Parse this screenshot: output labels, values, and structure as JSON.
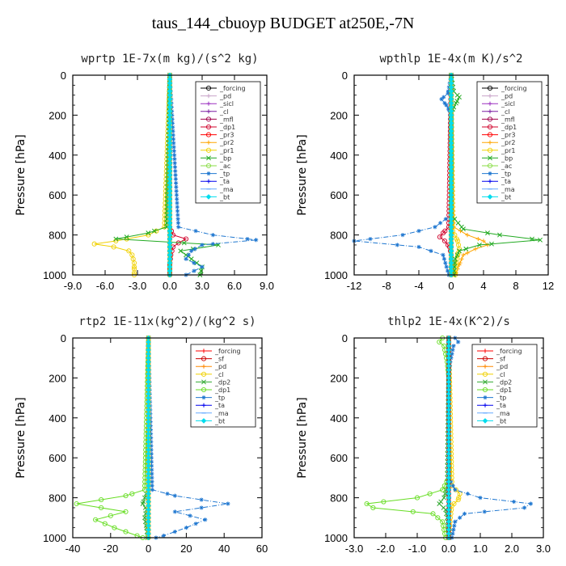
{
  "figure": {
    "title": "taus_144_cbuoyp  BUDGET at250E,-7N"
  },
  "chart_data": [
    {
      "type": "line",
      "title": "wprtp   1E-7x(m kg)/(s^2 kg)",
      "ylabel": "Pressure [hPa]",
      "xlim": [
        -9,
        9
      ],
      "ylim": [
        1000,
        0
      ],
      "y_reversed": true,
      "x_ticks": [
        "-9.0",
        "-6.0",
        "-3.0",
        "0.0",
        "3.0",
        "6.0",
        "9.0"
      ],
      "x_tick_values": [
        -9,
        -6,
        -3,
        0,
        3,
        6,
        9
      ],
      "y_ticks": [
        "0",
        "200",
        "400",
        "600",
        "800",
        "1000"
      ],
      "y_tick_values": [
        0,
        200,
        400,
        600,
        800,
        1000
      ],
      "legend_position": "top-right",
      "series": [
        {
          "name": "_forcing",
          "color": "#000000",
          "marker": "o",
          "y": [
            0,
            1000
          ],
          "x": [
            0,
            0
          ]
        },
        {
          "name": "_pd",
          "color": "#c8a2c8",
          "marker": "+",
          "y": [
            0,
            1000
          ],
          "x": [
            0,
            0
          ]
        },
        {
          "name": "_sicl",
          "color": "#9b30c0",
          "marker": "+",
          "y": [
            0,
            1000
          ],
          "x": [
            0,
            0
          ]
        },
        {
          "name": "_cl",
          "color": "#7b1fa2",
          "marker": "+",
          "y": [
            0,
            1000
          ],
          "x": [
            0,
            0
          ]
        },
        {
          "name": "_mfl",
          "color": "#a0004a",
          "marker": "o",
          "y": [
            0,
            1000
          ],
          "x": [
            0,
            0
          ]
        },
        {
          "name": "_dp1",
          "color": "#d0002a",
          "marker": "o",
          "y": [
            0,
            760,
            800,
            820,
            840,
            860,
            900,
            950,
            1000
          ],
          "x": [
            0,
            0,
            0.3,
            1.5,
            0.8,
            0.3,
            0.1,
            0,
            0
          ]
        },
        {
          "name": "_pr3",
          "color": "#ff0000",
          "marker": "o",
          "y": [
            0,
            1000
          ],
          "x": [
            0,
            0
          ]
        },
        {
          "name": "_pr2",
          "color": "#ffa500",
          "marker": "+",
          "y": [
            0,
            1000
          ],
          "x": [
            0,
            0
          ]
        },
        {
          "name": "_pr1",
          "color": "#f0d000",
          "marker": "o",
          "y": [
            0,
            760,
            800,
            830,
            845,
            860,
            880,
            900,
            940,
            970,
            1000
          ],
          "x": [
            0,
            -0.5,
            -2.0,
            -5.0,
            -7.0,
            -5.2,
            -3.8,
            -3.5,
            -3.3,
            -3.3,
            -3.3
          ]
        },
        {
          "name": "_bp",
          "color": "#22aa22",
          "marker": "x",
          "y": [
            0,
            760,
            790,
            820,
            850,
            880,
            920,
            960,
            1000
          ],
          "x": [
            0,
            -0.3,
            -2.0,
            -5.0,
            4.5,
            1.0,
            2.0,
            3.0,
            2.8
          ]
        },
        {
          "name": "_ac",
          "color": "#88dd44",
          "marker": "o",
          "y": [
            0,
            1000
          ],
          "x": [
            0,
            0
          ]
        },
        {
          "name": "_tp",
          "color": "#1f77d0",
          "marker": "*",
          "y": [
            0,
            760,
            800,
            825,
            850,
            880,
            920,
            960,
            1000
          ],
          "x": [
            0,
            0.8,
            4.0,
            8.0,
            3.0,
            2.0,
            1.5,
            3.0,
            1.5
          ]
        },
        {
          "name": "_ta",
          "color": "#0000ee",
          "marker": "+",
          "y": [
            0,
            1000
          ],
          "x": [
            0,
            0
          ]
        },
        {
          "name": "_ma",
          "color": "#66aaff",
          "marker": "-",
          "y": [
            0,
            1000
          ],
          "x": [
            0,
            0
          ]
        },
        {
          "name": "_bt",
          "color": "#00ddee",
          "marker": "◆",
          "y": [
            0,
            1000
          ],
          "x": [
            0,
            0
          ]
        }
      ]
    },
    {
      "type": "line",
      "title": "wpthlp   1E-4x(m K)/s^2",
      "ylabel": "Pressure [hPa]",
      "xlim": [
        -12,
        12
      ],
      "ylim": [
        1000,
        0
      ],
      "y_reversed": true,
      "x_ticks": [
        "-12",
        "-8",
        "-4",
        "0",
        "4",
        "8",
        "12"
      ],
      "x_tick_values": [
        -12,
        -8,
        -4,
        0,
        4,
        8,
        12
      ],
      "y_ticks": [
        "0",
        "200",
        "400",
        "600",
        "800",
        "1000"
      ],
      "y_tick_values": [
        0,
        200,
        400,
        600,
        800,
        1000
      ],
      "legend_position": "top-right",
      "series": [
        {
          "name": "_forcing",
          "color": "#000000",
          "marker": "o",
          "y": [
            0,
            1000
          ],
          "x": [
            0,
            0
          ]
        },
        {
          "name": "_pd",
          "color": "#c8a2c8",
          "marker": "+",
          "y": [
            0,
            1000
          ],
          "x": [
            0,
            0
          ]
        },
        {
          "name": "_sicl",
          "color": "#9b30c0",
          "marker": "+",
          "y": [
            0,
            1000
          ],
          "x": [
            0,
            0
          ]
        },
        {
          "name": "_cl",
          "color": "#7b1fa2",
          "marker": "+",
          "y": [
            0,
            1000
          ],
          "x": [
            0,
            0
          ]
        },
        {
          "name": "_mfl",
          "color": "#a0004a",
          "marker": "o",
          "y": [
            0,
            1000
          ],
          "x": [
            0,
            0
          ]
        },
        {
          "name": "_dp1",
          "color": "#d0002a",
          "marker": "o",
          "y": [
            0,
            760,
            790,
            810,
            830,
            860,
            900,
            1000
          ],
          "x": [
            0,
            -0.3,
            -1.0,
            -1.4,
            -0.8,
            -0.2,
            0,
            0
          ]
        },
        {
          "name": "_pr3",
          "color": "#ff0000",
          "marker": "o",
          "y": [
            0,
            1000
          ],
          "x": [
            0,
            0
          ]
        },
        {
          "name": "_pr2",
          "color": "#ffa500",
          "marker": "+",
          "y": [
            0,
            760,
            800,
            830,
            850,
            870,
            900,
            950,
            1000
          ],
          "x": [
            0,
            0.3,
            2.0,
            4.0,
            4.5,
            3.0,
            1.5,
            1.0,
            0.5
          ]
        },
        {
          "name": "_pr1",
          "color": "#f0d000",
          "marker": "o",
          "y": [
            0,
            780,
            830,
            870,
            900,
            950,
            1000
          ],
          "x": [
            0,
            0.2,
            0.8,
            1.0,
            0.8,
            0.6,
            0.5
          ]
        },
        {
          "name": "_bp",
          "color": "#22aa22",
          "marker": "x",
          "y": [
            0,
            80,
            110,
            140,
            170,
            200,
            700,
            770,
            800,
            825,
            850,
            880,
            920,
            1000
          ],
          "x": [
            0,
            0.3,
            1.0,
            0.6,
            0.2,
            0,
            0,
            1.5,
            6.0,
            11.0,
            3.5,
            1.0,
            0.5,
            0.3
          ]
        },
        {
          "name": "_ac",
          "color": "#88dd44",
          "marker": "o",
          "y": [
            0,
            1000
          ],
          "x": [
            0,
            0
          ]
        },
        {
          "name": "_tp",
          "color": "#1f77d0",
          "marker": "*",
          "y": [
            0,
            90,
            120,
            150,
            180,
            220,
            700,
            760,
            800,
            830,
            860,
            900,
            1000
          ],
          "x": [
            0,
            -0.4,
            -1.2,
            -0.6,
            -0.2,
            0,
            0,
            -2.0,
            -6.0,
            -12.0,
            -4.0,
            -1.0,
            -0.3
          ]
        },
        {
          "name": "_ta",
          "color": "#0000ee",
          "marker": "+",
          "y": [
            0,
            1000
          ],
          "x": [
            0,
            0
          ]
        },
        {
          "name": "_ma",
          "color": "#66aaff",
          "marker": "-",
          "y": [
            0,
            1000
          ],
          "x": [
            0,
            0
          ]
        },
        {
          "name": "_bt",
          "color": "#00ddee",
          "marker": "◆",
          "y": [
            0,
            1000
          ],
          "x": [
            0,
            0
          ]
        }
      ]
    },
    {
      "type": "line",
      "title": "rtp2   1E-11x(kg^2)/(kg^2 s)",
      "ylabel": "Pressure [hPa]",
      "xlim": [
        -40,
        60
      ],
      "ylim": [
        1000,
        0
      ],
      "y_reversed": true,
      "x_ticks": [
        "-40",
        "-20",
        "0",
        "20",
        "40",
        "60"
      ],
      "x_tick_values": [
        -40,
        -20,
        0,
        20,
        40,
        60
      ],
      "y_ticks": [
        "0",
        "200",
        "400",
        "600",
        "800",
        "1000"
      ],
      "y_tick_values": [
        0,
        200,
        400,
        600,
        800,
        1000
      ],
      "legend_position": "top-right",
      "series": [
        {
          "name": "_forcing",
          "color": "#ff0000",
          "marker": "+",
          "y": [
            0,
            1000
          ],
          "x": [
            0,
            0
          ]
        },
        {
          "name": "_sf",
          "color": "#cc0000",
          "marker": "o",
          "y": [
            0,
            1000
          ],
          "x": [
            0,
            0
          ]
        },
        {
          "name": "_pd",
          "color": "#ff8800",
          "marker": "+",
          "y": [
            0,
            1000
          ],
          "x": [
            0,
            0
          ]
        },
        {
          "name": "_cl",
          "color": "#f0d000",
          "marker": "o",
          "y": [
            0,
            1000
          ],
          "x": [
            0,
            0
          ]
        },
        {
          "name": "_dp2",
          "color": "#33aa33",
          "marker": "x",
          "y": [
            0,
            760,
            800,
            830,
            860,
            900,
            950,
            1000
          ],
          "x": [
            0,
            -0.5,
            -2.0,
            -3.0,
            -1.0,
            -2.0,
            -1.0,
            -0.5
          ]
        },
        {
          "name": "_dp1",
          "color": "#66dd22",
          "marker": "o",
          "y": [
            0,
            760,
            790,
            830,
            870,
            910,
            950,
            990,
            1000
          ],
          "x": [
            0,
            -2.0,
            -12.0,
            -38.0,
            -12.0,
            -28.0,
            -18.0,
            -6.0,
            -3.0
          ]
        },
        {
          "name": "_tp",
          "color": "#1f77d0",
          "marker": "*",
          "y": [
            0,
            760,
            790,
            830,
            870,
            910,
            950,
            990,
            1000
          ],
          "x": [
            0,
            2.0,
            14.0,
            42.0,
            14.0,
            30.0,
            20.0,
            8.0,
            4.0
          ]
        },
        {
          "name": "_ta",
          "color": "#0000ee",
          "marker": "+",
          "y": [
            0,
            1000
          ],
          "x": [
            0,
            0
          ]
        },
        {
          "name": "_ma",
          "color": "#66aaff",
          "marker": "-",
          "y": [
            0,
            1000
          ],
          "x": [
            0,
            0
          ]
        },
        {
          "name": "_bt",
          "color": "#00ddee",
          "marker": "◆",
          "y": [
            0,
            1000
          ],
          "x": [
            0,
            0
          ]
        }
      ]
    },
    {
      "type": "line",
      "title": "thlp2   1E-4x(K^2)/s",
      "ylabel": "Pressure [hPa]",
      "xlim": [
        -3,
        3
      ],
      "ylim": [
        1000,
        0
      ],
      "y_reversed": true,
      "x_ticks": [
        "-3.0",
        "-2.0",
        "-1.0",
        "0.0",
        "1.0",
        "2.0",
        "3.0"
      ],
      "x_tick_values": [
        -3,
        -2,
        -1,
        0,
        1,
        2,
        3
      ],
      "y_ticks": [
        "0",
        "200",
        "400",
        "600",
        "800",
        "1000"
      ],
      "y_tick_values": [
        0,
        200,
        400,
        600,
        800,
        1000
      ],
      "legend_position": "top-right",
      "series": [
        {
          "name": "_forcing",
          "color": "#ff0000",
          "marker": "+",
          "y": [
            0,
            1000
          ],
          "x": [
            0,
            0
          ]
        },
        {
          "name": "_sf",
          "color": "#cc0000",
          "marker": "o",
          "y": [
            0,
            1000
          ],
          "x": [
            0,
            0
          ]
        },
        {
          "name": "_pd",
          "color": "#ff8800",
          "marker": "+",
          "y": [
            0,
            1000
          ],
          "x": [
            0,
            0
          ]
        },
        {
          "name": "_cl",
          "color": "#f0d000",
          "marker": "o",
          "y": [
            0,
            740,
            780,
            810,
            840,
            900,
            1000
          ],
          "x": [
            0,
            0.1,
            0.35,
            0.3,
            0.1,
            0.05,
            0
          ]
        },
        {
          "name": "_dp2",
          "color": "#33aa33",
          "marker": "x",
          "y": [
            0,
            740,
            800,
            830,
            860,
            900,
            1000
          ],
          "x": [
            0,
            -0.05,
            -0.15,
            -0.3,
            -0.1,
            -0.05,
            0
          ]
        },
        {
          "name": "_dp1",
          "color": "#66dd22",
          "marker": "o",
          "y": [
            0,
            20,
            40,
            80,
            120,
            200,
            700,
            760,
            800,
            830,
            850,
            880,
            920,
            1000
          ],
          "x": [
            -0.2,
            -0.3,
            -0.15,
            -0.1,
            -0.05,
            0,
            0,
            -0.2,
            -1.0,
            -2.6,
            -2.4,
            -0.5,
            -0.2,
            -0.1
          ]
        },
        {
          "name": "_tp",
          "color": "#1f77d0",
          "marker": "*",
          "y": [
            0,
            20,
            40,
            80,
            120,
            200,
            700,
            760,
            800,
            830,
            850,
            880,
            920,
            1000
          ],
          "x": [
            0.2,
            0.3,
            0.15,
            0.1,
            0.05,
            0,
            0,
            0.2,
            1.0,
            2.6,
            2.4,
            0.5,
            0.2,
            0.1
          ]
        },
        {
          "name": "_ta",
          "color": "#0000ee",
          "marker": "+",
          "y": [
            0,
            1000
          ],
          "x": [
            0,
            0
          ]
        },
        {
          "name": "_ma",
          "color": "#66aaff",
          "marker": "-",
          "y": [
            0,
            1000
          ],
          "x": [
            0,
            0
          ]
        },
        {
          "name": "_bt",
          "color": "#00ddee",
          "marker": "◆",
          "y": [
            0,
            1000
          ],
          "x": [
            0,
            0
          ]
        }
      ]
    }
  ]
}
